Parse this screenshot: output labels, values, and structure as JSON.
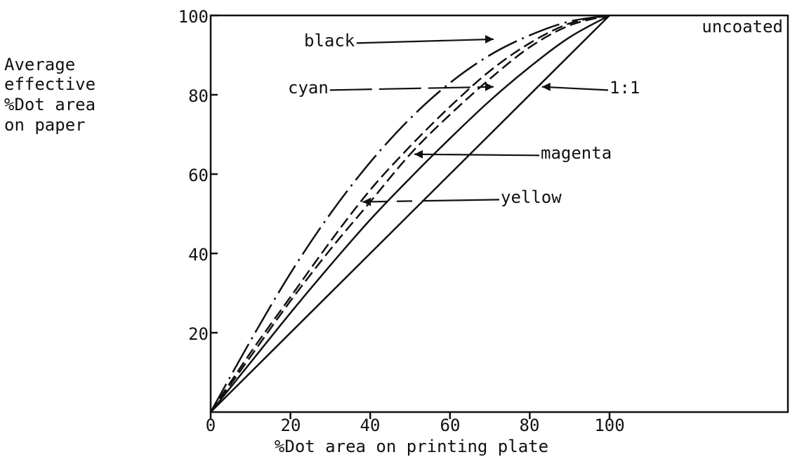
{
  "chart_data": {
    "type": "line",
    "title": "",
    "condition_label": "uncoated",
    "xlabel": "%Dot area on printing plate",
    "ylabel_lines": [
      "Average",
      "effective",
      "%Dot area",
      "on paper"
    ],
    "xlim": [
      0,
      100
    ],
    "ylim": [
      0,
      100
    ],
    "x_ticks": [
      "0",
      "20",
      "40",
      "60",
      "80",
      "100"
    ],
    "y_ticks": [
      "20",
      "40",
      "60",
      "80",
      "100"
    ],
    "grid": false,
    "series": [
      {
        "name": "black",
        "style": "dash-dot",
        "x": [
          0,
          10,
          20,
          30,
          40,
          50,
          60,
          70,
          80,
          90,
          100
        ],
        "y": [
          0,
          18,
          35,
          50,
          63,
          74,
          83,
          90,
          95,
          98.5,
          100
        ]
      },
      {
        "name": "cyan",
        "style": "dashed",
        "x": [
          0,
          10,
          20,
          30,
          40,
          50,
          60,
          70,
          80,
          90,
          100
        ],
        "y": [
          0,
          15,
          29,
          43,
          56,
          67,
          77,
          86,
          93,
          98,
          100
        ]
      },
      {
        "name": "magenta",
        "style": "dashed",
        "x": [
          0,
          10,
          20,
          30,
          40,
          50,
          60,
          70,
          80,
          90,
          100
        ],
        "y": [
          0,
          14,
          28,
          41,
          53,
          65,
          75,
          84,
          92,
          97.5,
          100
        ]
      },
      {
        "name": "yellow",
        "style": "solid",
        "x": [
          0,
          10,
          20,
          30,
          40,
          50,
          60,
          70,
          80,
          90,
          100
        ],
        "y": [
          0,
          12.5,
          25,
          37,
          48.5,
          59,
          69,
          78.5,
          87,
          94.5,
          100
        ]
      },
      {
        "name": "1:1",
        "style": "solid",
        "x": [
          0,
          100
        ],
        "y": [
          0,
          100
        ]
      }
    ],
    "annotations": [
      {
        "label": "black",
        "series": "black",
        "target": [
          72,
          94
        ]
      },
      {
        "label": "cyan",
        "series": "cyan",
        "target": [
          72,
          82
        ]
      },
      {
        "label": "magenta",
        "series": "magenta",
        "target": [
          50,
          65
        ]
      },
      {
        "label": "yellow",
        "series": "yellow",
        "target": [
          37,
          53
        ]
      },
      {
        "label": "1:1",
        "series": "1:1",
        "target": [
          82,
          82
        ]
      }
    ]
  }
}
